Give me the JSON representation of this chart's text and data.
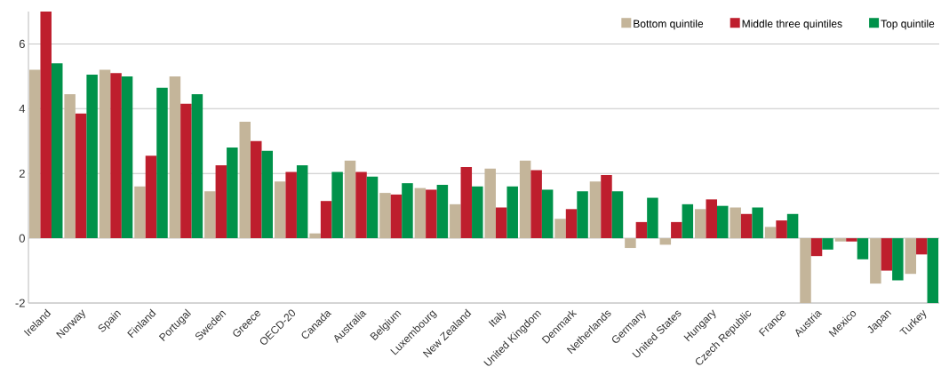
{
  "chart_data": {
    "type": "bar",
    "categories": [
      "Ireland",
      "Norway",
      "Spain",
      "Finland",
      "Portugal",
      "Sweden",
      "Greece",
      "OECD-20",
      "Canada",
      "Australia",
      "Belgium",
      "Luxembourg",
      "New Zealand",
      "Italy",
      "United Kingdom",
      "Denmark",
      "Netherlands",
      "Germany",
      "United States",
      "Hungary",
      "Czech Republic",
      "France",
      "Austria",
      "Mexico",
      "Japan",
      "Turkey"
    ],
    "series": [
      {
        "name": "Bottom quintile",
        "color": "#c4b59a",
        "values": [
          5.2,
          4.45,
          5.2,
          1.6,
          5.0,
          1.45,
          3.6,
          1.75,
          0.15,
          2.4,
          1.4,
          1.55,
          1.05,
          2.15,
          2.4,
          0.6,
          1.75,
          -0.3,
          -0.2,
          0.9,
          0.95,
          0.35,
          -2.0,
          -0.1,
          -1.4,
          -1.1
        ]
      },
      {
        "name": "Middle three quintiles",
        "color": "#be1e2d",
        "values": [
          7.0,
          3.85,
          5.1,
          2.55,
          4.15,
          2.25,
          3.0,
          2.05,
          1.15,
          2.05,
          1.35,
          1.5,
          2.2,
          0.95,
          2.1,
          0.9,
          1.95,
          0.5,
          0.5,
          1.2,
          0.75,
          0.55,
          -0.55,
          -0.1,
          -1.0,
          -0.5
        ]
      },
      {
        "name": "Top quintile",
        "color": "#00924a",
        "values": [
          5.4,
          5.05,
          5.0,
          4.65,
          4.45,
          2.8,
          2.7,
          2.25,
          2.05,
          1.9,
          1.7,
          1.65,
          1.6,
          1.6,
          1.5,
          1.45,
          1.45,
          1.25,
          1.05,
          1.0,
          0.95,
          0.75,
          -0.35,
          -0.65,
          -1.3,
          -2.0
        ]
      }
    ],
    "ylim": [
      -2,
      7
    ],
    "yticks": [
      -2,
      0,
      2,
      4,
      6
    ],
    "grid": "y",
    "legend": "top right"
  }
}
